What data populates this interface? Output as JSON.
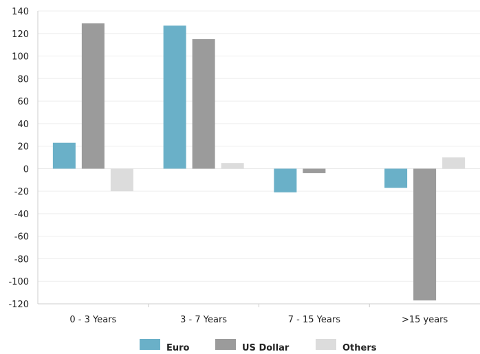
{
  "chart_data": {
    "type": "bar",
    "categories": [
      "0 - 3 Years",
      "3 - 7 Years",
      "7 - 15 Years",
      ">15 years"
    ],
    "series": [
      {
        "name": "Euro",
        "color": "#6ab0c8",
        "values": [
          23,
          127,
          -21,
          -17
        ]
      },
      {
        "name": "US Dollar",
        "color": "#9b9b9b",
        "values": [
          129,
          115,
          -4,
          -117
        ]
      },
      {
        "name": "Others",
        "color": "#dcdcdc",
        "values": [
          -20,
          5,
          0,
          10
        ]
      }
    ],
    "yticks": [
      140,
      120,
      100,
      80,
      60,
      40,
      20,
      0,
      -20,
      -40,
      -60,
      -80,
      -100,
      -120
    ],
    "ylim": [
      -120,
      140
    ],
    "legend_position": "bottom-center",
    "grid": true
  }
}
